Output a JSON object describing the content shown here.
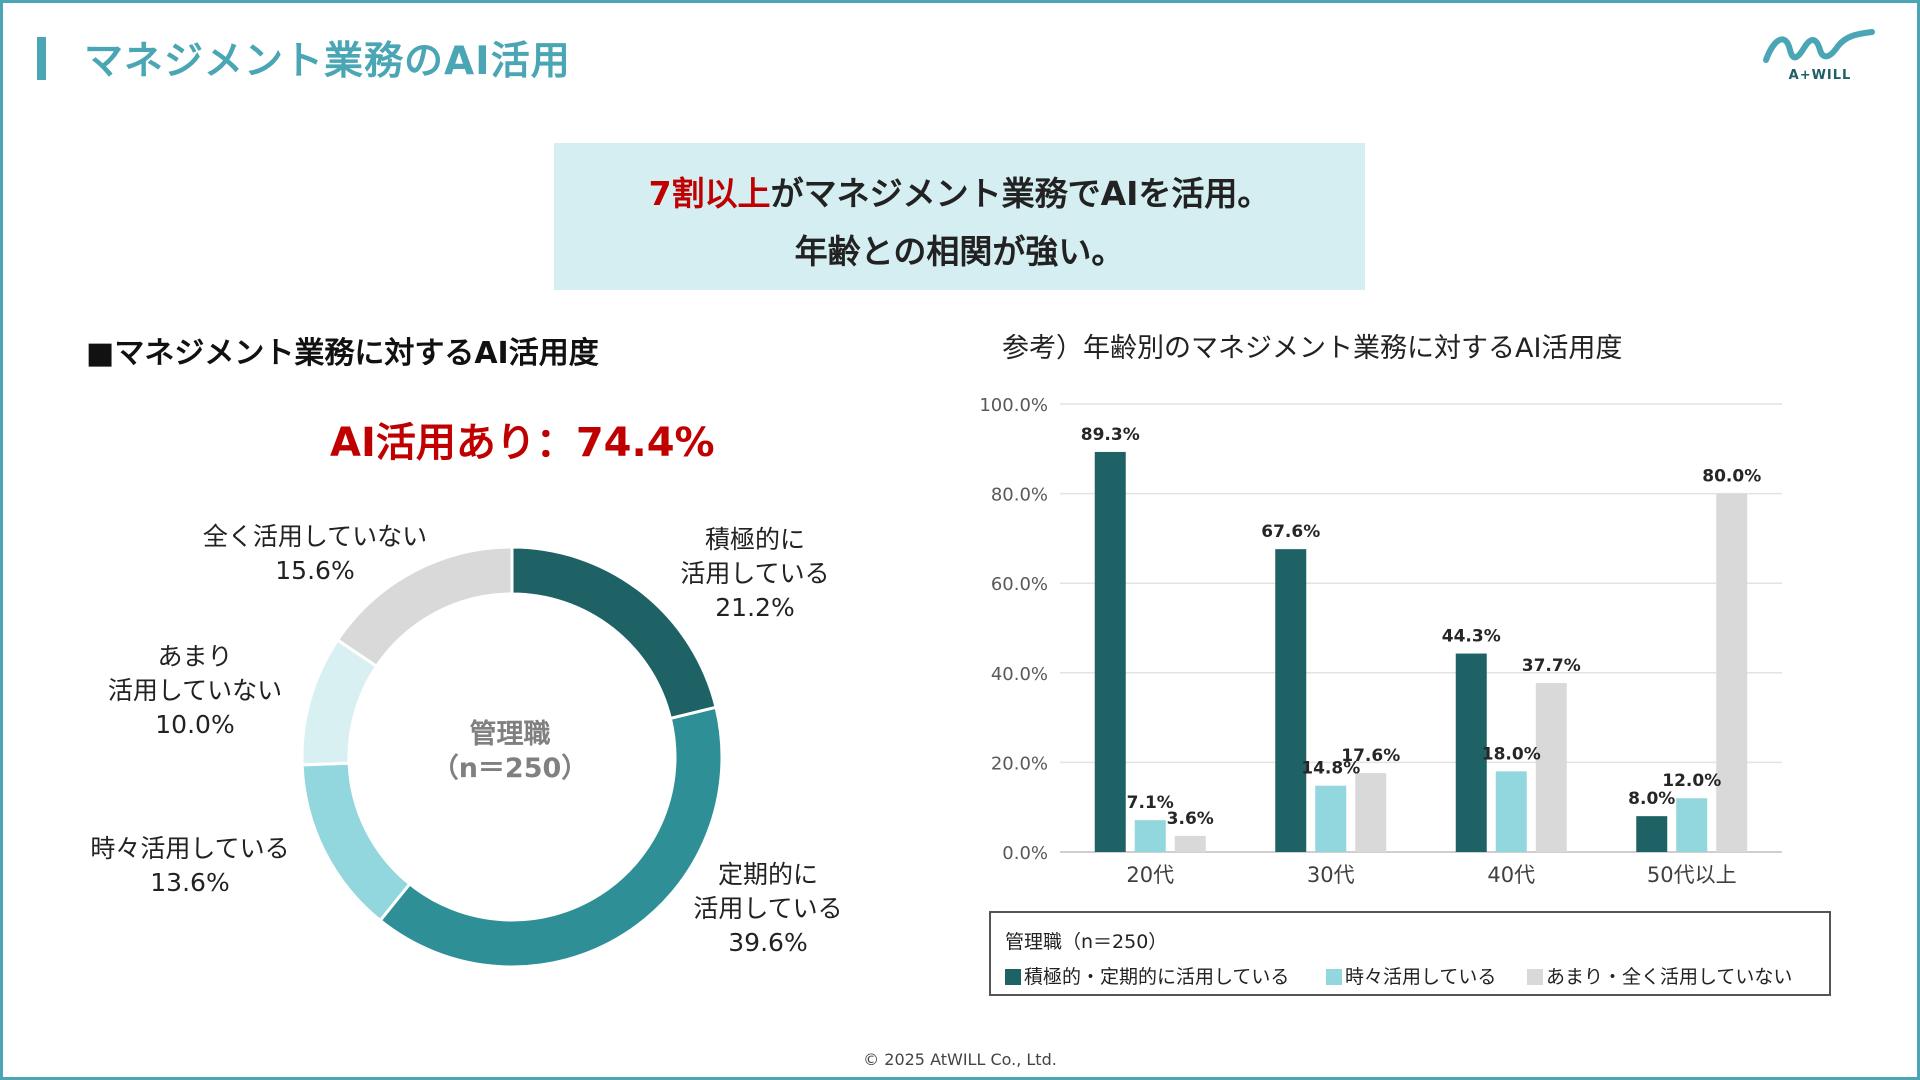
{
  "page": {
    "title": "マネジメント業務のAI活用",
    "logo_text": "A+WILL",
    "headline_red": "7割以上",
    "headline_rest": "がマネジメント業務でAIを活用。",
    "headline_line2": "年齢との相関が強い。",
    "copyright": "© 2025 AtWILL  Co., Ltd.",
    "colors": {
      "accent": "#4aa6b4",
      "red": "#c00000",
      "dark_teal": "#1e6266",
      "mid_teal": "#2e9096",
      "light_teal": "#92d6de",
      "pale_teal": "#d9f0f3",
      "light_gray": "#d9d9d9"
    }
  },
  "left": {
    "heading": "■マネジメント業務に対するAI活用度",
    "ai_rate": "AI活用あり：74.4%",
    "center_line1": "管理職",
    "center_line2": "（n＝250）"
  },
  "right": {
    "heading": "参考）年齢別のマネジメント業務に対するAI活用度",
    "legend_title": "管理職（n＝250）"
  },
  "chart_data": [
    {
      "type": "pie",
      "title": "マネジメント業務に対するAI活用度",
      "center_label": "管理職（n＝250）",
      "slices": [
        {
          "label_lines": [
            "積極的に",
            "活用している"
          ],
          "value": 21.2,
          "value_label": "21.2%",
          "color": "#1e6266"
        },
        {
          "label_lines": [
            "定期的に",
            "活用している"
          ],
          "value": 39.6,
          "value_label": "39.6%",
          "color": "#2e9096"
        },
        {
          "label_lines": [
            "時々活用している"
          ],
          "value": 13.6,
          "value_label": "13.6%",
          "color": "#92d6de"
        },
        {
          "label_lines": [
            "あまり",
            "活用していない"
          ],
          "value": 10.0,
          "value_label": "10.0%",
          "color": "#d9f0f3"
        },
        {
          "label_lines": [
            "全く活用していない"
          ],
          "value": 15.6,
          "value_label": "15.6%",
          "color": "#d9d9d9"
        }
      ]
    },
    {
      "type": "bar",
      "title": "年齢別のマネジメント業務に対するAI活用度",
      "categories": [
        "20代",
        "30代",
        "40代",
        "50代以上"
      ],
      "ylim": [
        0,
        100
      ],
      "yticks": [
        "0.0%",
        "20.0%",
        "40.0%",
        "60.0%",
        "80.0%",
        "100.0%"
      ],
      "grid": true,
      "legend": "bottom",
      "series": [
        {
          "name": "積極的・定期的に活用している",
          "color": "#1e6266",
          "values": [
            89.3,
            67.6,
            44.3,
            8.0
          ],
          "labels": [
            "89.3%",
            "67.6%",
            "44.3%",
            "8.0%"
          ]
        },
        {
          "name": "時々活用している",
          "color": "#92d6de",
          "values": [
            7.1,
            14.8,
            18.0,
            12.0
          ],
          "labels": [
            "7.1%",
            "14.8%",
            "18.0%",
            "12.0%"
          ]
        },
        {
          "name": "あまり・全く活用していない",
          "color": "#d9d9d9",
          "values": [
            3.6,
            17.6,
            37.7,
            80.0
          ],
          "labels": [
            "3.6%",
            "17.6%",
            "37.7%",
            "80.0%"
          ]
        }
      ]
    }
  ]
}
